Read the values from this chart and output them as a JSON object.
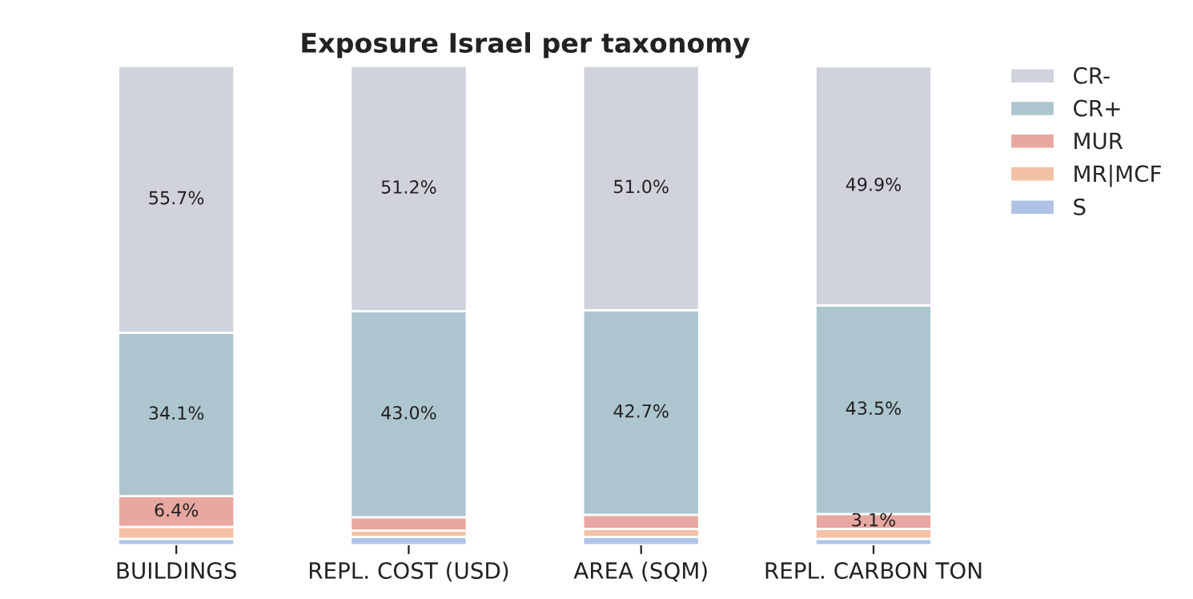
{
  "chart_data": {
    "type": "bar",
    "title": "Exposure Israel per taxonomy",
    "stacked": true,
    "legend": "top right",
    "grid": false,
    "tick_labels": "x",
    "categories": [
      "BUILDINGS",
      "REPL. COST (USD)",
      "AREA (SQM)",
      "REPL. CARBON TON"
    ],
    "series": [
      {
        "name": "S",
        "color": "#b0c3e6",
        "values": [
          1.3,
          1.7,
          1.7,
          1.3
        ],
        "value_labels": [
          null,
          null,
          null,
          null
        ]
      },
      {
        "name": "MR|MCF",
        "color": "#f3c1a5",
        "values": [
          2.5,
          1.3,
          1.7,
          2.1
        ],
        "value_labels": [
          null,
          null,
          null,
          null
        ]
      },
      {
        "name": "MUR",
        "color": "#e8a7a0",
        "values": [
          6.4,
          2.8,
          2.9,
          3.1
        ],
        "value_labels": [
          "6.4%",
          null,
          null,
          "3.1%"
        ]
      },
      {
        "name": "CR+",
        "color": "#adc5ce",
        "values": [
          34.1,
          43.0,
          42.7,
          43.5
        ],
        "value_labels": [
          "34.1%",
          "43.0%",
          "42.7%",
          "43.5%"
        ]
      },
      {
        "name": "CR-",
        "color": "#d0d3db",
        "values": [
          55.7,
          51.2,
          51.0,
          49.9
        ],
        "value_labels": [
          "55.7%",
          "51.2%",
          "51.0%",
          "49.9%"
        ]
      }
    ]
  }
}
